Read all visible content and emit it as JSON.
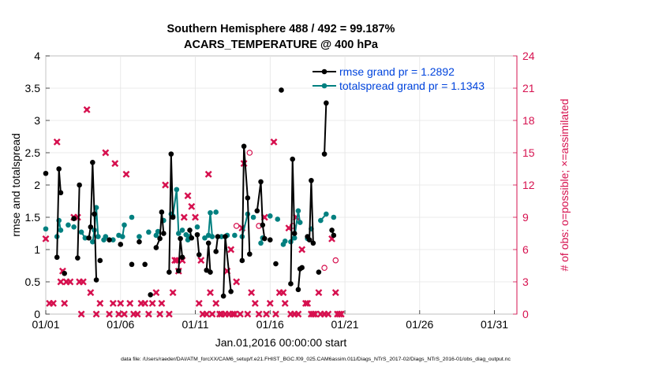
{
  "chart_data": {
    "type": "line",
    "title_line1": "Southern Hemisphere 488 / 492 = 99.187%",
    "title_line2": "ACARS_TEMPERATURE @ 400 hPa",
    "xlabel": "Jan.01,2016 00:00:00 start",
    "ylabel_left": "rmse and totalspread",
    "ylabel_right": "# of obs: o=possible; ×=assimilated",
    "footnote": "data file: /Users/raeder/DAI/ATM_forcXX/CAM6_setup/f.e21.FHIST_BGC.f09_025.CAM6assim.011/Diags_NTrS_2017-02/Diags_NTrS_2016-01/obs_diag_output.nc",
    "xlim": [
      0,
      31.5
    ],
    "ylim_left": [
      0,
      4
    ],
    "ylim_right": [
      0,
      24
    ],
    "x_ticks": [
      0,
      5,
      10,
      15,
      20,
      25,
      30
    ],
    "x_tick_labels": [
      "01/01",
      "01/06",
      "01/11",
      "01/16",
      "01/21",
      "01/26",
      "01/31"
    ],
    "y_ticks_left": [
      "0",
      "0.5",
      "1",
      "1.5",
      "2",
      "2.5",
      "3",
      "3.5",
      "4"
    ],
    "y_ticks_right": [
      "0",
      "3",
      "6",
      "9",
      "12",
      "15",
      "18",
      "21",
      "24"
    ],
    "colors": {
      "rmse": "#000000",
      "spread": "#008080",
      "obs": "#d6114f",
      "legend_text": "#0044dd"
    },
    "legend": [
      {
        "name": "rmse",
        "label": "rmse grand pr = 1.2892"
      },
      {
        "name": "spread",
        "label": "totalspread grand pr = 1.1343"
      }
    ],
    "rmse_segments": [
      [
        [
          0.0,
          2.18
        ]
      ],
      [
        [
          0.75,
          0.88
        ],
        [
          0.88,
          2.25
        ],
        [
          1.0,
          1.88
        ]
      ],
      [
        [
          1.25,
          0.63
        ]
      ],
      [
        [
          1.88,
          1.48
        ]
      ],
      [
        [
          2.13,
          0.87
        ],
        [
          2.25,
          2.0
        ]
      ],
      [
        [
          2.88,
          1.18
        ],
        [
          3.0,
          1.35
        ],
        [
          3.13,
          2.35
        ],
        [
          3.25,
          1.55
        ],
        [
          3.38,
          0.53
        ]
      ],
      [
        [
          3.63,
          0.83
        ]
      ],
      [
        [
          4.25,
          1.15
        ]
      ],
      [
        [
          5.0,
          1.08
        ]
      ],
      [
        [
          5.75,
          0.77
        ]
      ],
      [
        [
          6.25,
          1.12
        ]
      ],
      [
        [
          6.63,
          0.77
        ]
      ],
      [
        [
          7.0,
          0.3
        ]
      ],
      [
        [
          7.38,
          1.03
        ],
        [
          7.63,
          1.17
        ],
        [
          7.75,
          1.58
        ],
        [
          7.88,
          1.25
        ]
      ],
      [
        [
          8.25,
          0.65
        ],
        [
          8.38,
          2.48
        ],
        [
          8.5,
          1.5
        ]
      ],
      [
        [
          8.88,
          0.67
        ],
        [
          9.0,
          1.17
        ],
        [
          9.13,
          0.88
        ]
      ],
      [
        [
          9.63,
          1.3
        ],
        [
          9.75,
          1.18
        ]
      ],
      [
        [
          10.13,
          1.23
        ],
        [
          10.25,
          0.92
        ]
      ],
      [
        [
          10.75,
          0.68
        ],
        [
          10.88,
          1.1
        ],
        [
          11.0,
          0.65
        ]
      ],
      [
        [
          11.38,
          0.97
        ],
        [
          11.5,
          1.2
        ]
      ],
      [
        [
          11.88,
          0.28
        ],
        [
          12.0,
          1.2
        ],
        [
          12.38,
          0.35
        ]
      ],
      [
        [
          13.13,
          0.83
        ],
        [
          13.25,
          2.6
        ],
        [
          13.5,
          1.8
        ],
        [
          13.63,
          0.93
        ]
      ],
      [
        [
          14.13,
          1.6
        ],
        [
          14.38,
          2.05
        ],
        [
          14.5,
          1.38
        ],
        [
          14.63,
          1.17
        ]
      ],
      [
        [
          15.0,
          1.15
        ]
      ],
      [
        [
          15.38,
          0.78
        ]
      ],
      [
        [
          15.75,
          3.47
        ]
      ],
      [
        [
          16.38,
          0.47
        ],
        [
          16.5,
          2.4
        ],
        [
          16.63,
          1.25
        ]
      ],
      [
        [
          16.88,
          0.38
        ],
        [
          17.0,
          0.7
        ],
        [
          17.13,
          0.72
        ]
      ],
      [
        [
          17.5,
          1.2
        ],
        [
          17.63,
          1.15
        ],
        [
          17.75,
          2.07
        ],
        [
          17.88,
          1.1
        ]
      ],
      [
        [
          18.25,
          0.65
        ]
      ],
      [
        [
          18.63,
          2.48
        ],
        [
          18.75,
          3.27
        ]
      ],
      [
        [
          19.13,
          1.3
        ],
        [
          19.25,
          1.22
        ]
      ]
    ],
    "spread_segments": [
      [
        [
          0.0,
          1.32
        ]
      ],
      [
        [
          0.75,
          1.2
        ],
        [
          0.88,
          1.45
        ],
        [
          1.0,
          1.3
        ]
      ],
      [
        [
          1.5,
          1.38
        ]
      ],
      [
        [
          1.88,
          1.35
        ]
      ],
      [
        [
          2.38,
          1.27
        ],
        [
          2.63,
          1.18
        ]
      ],
      [
        [
          3.13,
          1.12
        ],
        [
          3.25,
          1.3
        ],
        [
          3.38,
          1.65
        ],
        [
          3.5,
          1.2
        ]
      ],
      [
        [
          3.88,
          1.15
        ],
        [
          4.0,
          1.2
        ]
      ],
      [
        [
          4.5,
          1.15
        ]
      ],
      [
        [
          4.88,
          1.22
        ]
      ],
      [
        [
          5.13,
          1.2
        ],
        [
          5.25,
          1.38
        ]
      ],
      [
        [
          5.75,
          1.5
        ]
      ],
      [
        [
          6.25,
          1.2
        ]
      ],
      [
        [
          6.88,
          1.27
        ]
      ],
      [
        [
          7.38,
          1.22
        ],
        [
          7.5,
          1.28
        ]
      ],
      [
        [
          7.88,
          1.45
        ]
      ],
      [
        [
          8.38,
          1.55
        ],
        [
          8.5,
          1.52
        ],
        [
          8.75,
          1.93
        ],
        [
          8.88,
          1.25
        ]
      ],
      [
        [
          9.13,
          1.3
        ]
      ],
      [
        [
          9.38,
          1.23
        ],
        [
          9.5,
          1.15
        ],
        [
          9.63,
          1.2
        ]
      ],
      [
        [
          10.13,
          1.35
        ]
      ],
      [
        [
          10.63,
          1.18
        ],
        [
          10.88,
          1.22
        ],
        [
          11.0,
          1.57
        ],
        [
          11.13,
          1.2
        ]
      ],
      [
        [
          11.38,
          1.58
        ]
      ],
      [
        [
          11.75,
          1.2
        ]
      ],
      [
        [
          12.13,
          1.22
        ]
      ],
      [
        [
          12.63,
          1.22
        ]
      ],
      [
        [
          13.13,
          1.2
        ],
        [
          13.5,
          1.55
        ]
      ],
      [
        [
          13.88,
          1.5
        ]
      ],
      [
        [
          14.38,
          1.1
        ],
        [
          14.5,
          1.18
        ]
      ],
      [
        [
          15.0,
          1.52
        ]
      ],
      [
        [
          15.5,
          1.47
        ]
      ],
      [
        [
          15.88,
          1.08
        ],
        [
          16.0,
          1.13
        ]
      ],
      [
        [
          16.38,
          1.12
        ],
        [
          16.63,
          1.18
        ],
        [
          16.88,
          1.6
        ],
        [
          17.0,
          1.42
        ]
      ],
      [
        [
          17.5,
          1.17
        ]
      ],
      [
        [
          17.75,
          1.32
        ]
      ],
      [
        [
          18.38,
          1.45
        ],
        [
          18.75,
          1.55
        ]
      ],
      [
        [
          19.25,
          1.5
        ]
      ]
    ],
    "obs_assimilated": [
      [
        0,
        7
      ],
      [
        0.25,
        1
      ],
      [
        0.5,
        1
      ],
      [
        0.75,
        16
      ],
      [
        1.0,
        3
      ],
      [
        1.13,
        4
      ],
      [
        1.25,
        1
      ],
      [
        1.38,
        3
      ],
      [
        1.63,
        3
      ],
      [
        1.88,
        9
      ],
      [
        2.13,
        9
      ],
      [
        2.25,
        3
      ],
      [
        2.38,
        0
      ],
      [
        2.5,
        3
      ],
      [
        2.75,
        19
      ],
      [
        3.0,
        2
      ],
      [
        3.38,
        0
      ],
      [
        3.63,
        1
      ],
      [
        4.0,
        15
      ],
      [
        4.25,
        0
      ],
      [
        4.5,
        1
      ],
      [
        4.63,
        14
      ],
      [
        4.88,
        0
      ],
      [
        5.0,
        1
      ],
      [
        5.25,
        0
      ],
      [
        5.38,
        13
      ],
      [
        5.63,
        1
      ],
      [
        5.88,
        0
      ],
      [
        6.13,
        0
      ],
      [
        6.38,
        1
      ],
      [
        6.63,
        1
      ],
      [
        6.88,
        0
      ],
      [
        7.13,
        1
      ],
      [
        7.38,
        2
      ],
      [
        7.63,
        0
      ],
      [
        7.75,
        1
      ],
      [
        8.0,
        12
      ],
      [
        8.25,
        0
      ],
      [
        8.5,
        2
      ],
      [
        8.63,
        5
      ],
      [
        8.75,
        5
      ],
      [
        8.88,
        4
      ],
      [
        9.13,
        5
      ],
      [
        9.25,
        9
      ],
      [
        9.5,
        11
      ],
      [
        9.75,
        10
      ],
      [
        10.0,
        9
      ],
      [
        10.25,
        1
      ],
      [
        10.38,
        5
      ],
      [
        10.5,
        0
      ],
      [
        10.75,
        0
      ],
      [
        10.88,
        13
      ],
      [
        11.0,
        2
      ],
      [
        11.13,
        0
      ],
      [
        11.38,
        1
      ],
      [
        11.63,
        0
      ],
      [
        11.75,
        0
      ],
      [
        12.0,
        0
      ],
      [
        12.13,
        4
      ],
      [
        12.25,
        0
      ],
      [
        12.38,
        6
      ],
      [
        12.5,
        0
      ],
      [
        12.63,
        0
      ],
      [
        12.75,
        3
      ],
      [
        13.0,
        0
      ],
      [
        13.13,
        8
      ],
      [
        13.25,
        14
      ],
      [
        13.5,
        0
      ],
      [
        13.75,
        2
      ],
      [
        14.0,
        1
      ],
      [
        14.25,
        0
      ],
      [
        14.63,
        9
      ],
      [
        14.75,
        0
      ],
      [
        15.0,
        1
      ],
      [
        15.25,
        16
      ],
      [
        15.38,
        0
      ],
      [
        15.63,
        2
      ],
      [
        15.88,
        2
      ],
      [
        16.0,
        1
      ],
      [
        16.25,
        8
      ],
      [
        16.38,
        0
      ],
      [
        16.63,
        0
      ],
      [
        16.75,
        9
      ],
      [
        16.88,
        0
      ],
      [
        17.13,
        6
      ],
      [
        17.38,
        1
      ],
      [
        17.5,
        1
      ],
      [
        17.75,
        0
      ],
      [
        17.88,
        0
      ],
      [
        18.0,
        0
      ],
      [
        18.25,
        2
      ],
      [
        18.38,
        0
      ],
      [
        18.63,
        0
      ],
      [
        18.88,
        0
      ],
      [
        19.13,
        7
      ],
      [
        19.38,
        2
      ],
      [
        19.5,
        0
      ],
      [
        19.63,
        0
      ],
      [
        19.75,
        0
      ]
    ],
    "obs_possible": [
      [
        13.63,
        15
      ],
      [
        19.38,
        5
      ],
      [
        18.63,
        4.3
      ],
      [
        12.75,
        8.2
      ],
      [
        14.25,
        8.2
      ],
      [
        16.5,
        8.2
      ]
    ]
  }
}
